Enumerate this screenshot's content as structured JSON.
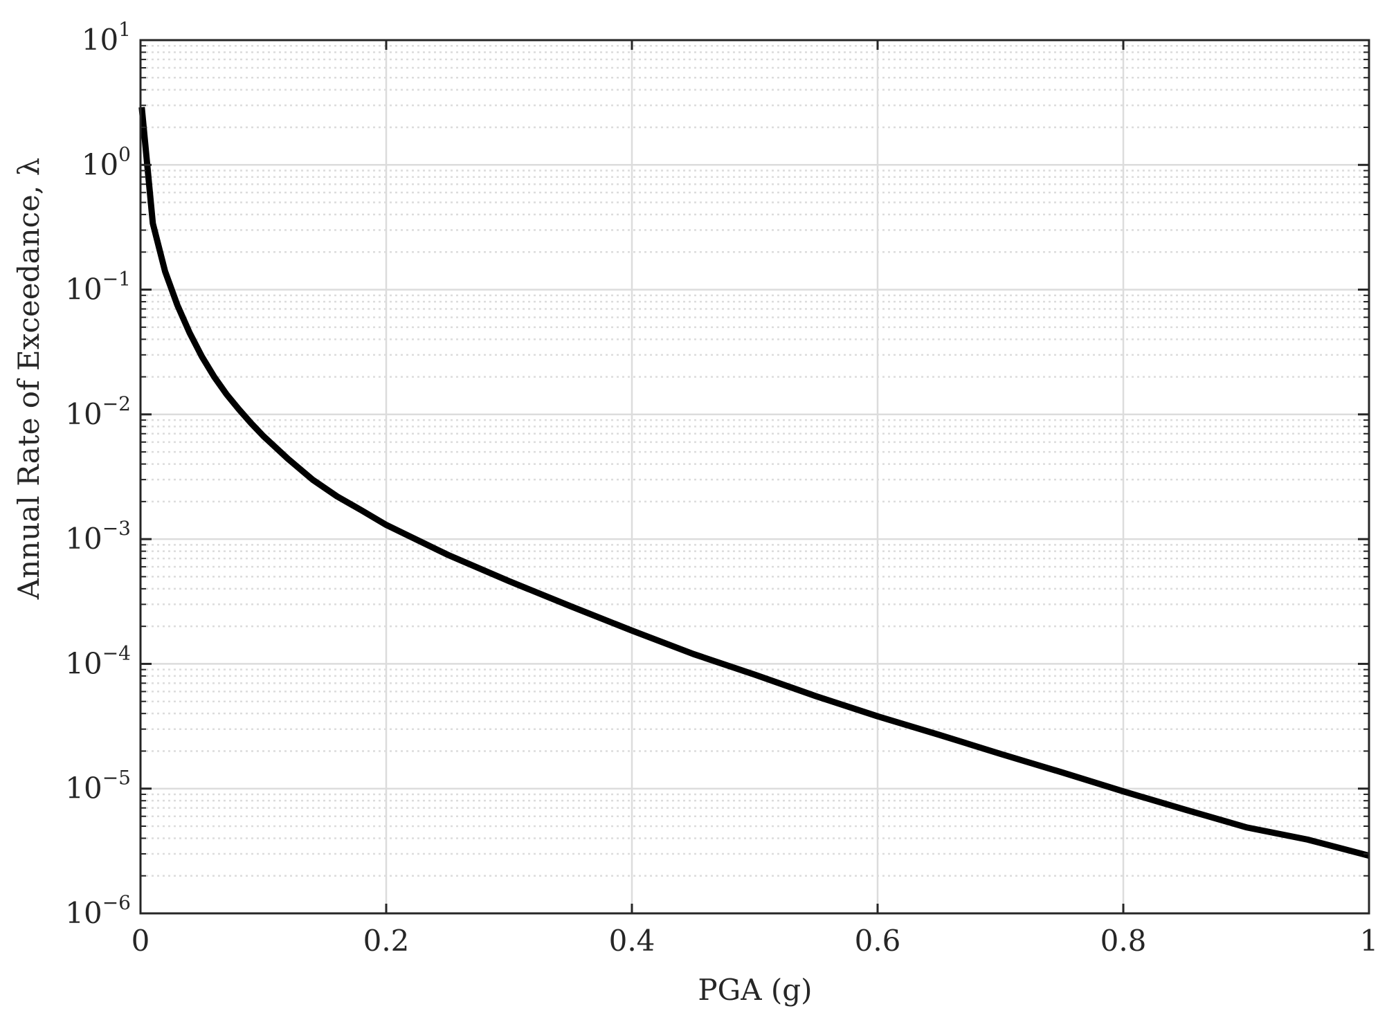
{
  "chart_data": {
    "type": "line",
    "title": "",
    "xlabel": "PGA (g)",
    "ylabel": "Annual Rate of Exceedance, λ",
    "xlim": [
      0,
      1
    ],
    "ylim": [
      1e-06,
      10
    ],
    "yscale": "log",
    "grid": true,
    "minor_grid": true,
    "line_color": "#000000",
    "grid_color": "#dcdcdc",
    "axis_color": "#262626",
    "xticks": [
      {
        "value": 0,
        "label": "0"
      },
      {
        "value": 0.2,
        "label": "0.2"
      },
      {
        "value": 0.4,
        "label": "0.4"
      },
      {
        "value": 0.6,
        "label": "0.6"
      },
      {
        "value": 0.8,
        "label": "0.8"
      },
      {
        "value": 1,
        "label": "1"
      }
    ],
    "yticks": [
      {
        "value": 1e-06,
        "base": "10",
        "exp": "−6"
      },
      {
        "value": 1e-05,
        "base": "10",
        "exp": "−5"
      },
      {
        "value": 0.0001,
        "base": "10",
        "exp": "−4"
      },
      {
        "value": 0.001,
        "base": "10",
        "exp": "−3"
      },
      {
        "value": 0.01,
        "base": "10",
        "exp": "−2"
      },
      {
        "value": 0.1,
        "base": "10",
        "exp": "−1"
      },
      {
        "value": 1,
        "base": "10",
        "exp": "0"
      },
      {
        "value": 10,
        "base": "10",
        "exp": "1"
      }
    ],
    "series": [
      {
        "x": [
          0.001,
          0.01,
          0.02,
          0.03,
          0.04,
          0.05,
          0.06,
          0.07,
          0.08,
          0.09,
          0.1,
          0.12,
          0.14,
          0.16,
          0.18,
          0.2,
          0.25,
          0.3,
          0.35,
          0.4,
          0.45,
          0.5,
          0.55,
          0.6,
          0.65,
          0.7,
          0.75,
          0.8,
          0.85,
          0.9,
          0.95,
          1.0
        ],
        "y": [
          2.9,
          0.34,
          0.14,
          0.075,
          0.045,
          0.029,
          0.02,
          0.0145,
          0.011,
          0.0085,
          0.0067,
          0.0044,
          0.003,
          0.0022,
          0.0017,
          0.0013,
          0.00075,
          0.00046,
          0.00029,
          0.000185,
          0.00012,
          8.2e-05,
          5.5e-05,
          3.8e-05,
          2.7e-05,
          1.9e-05,
          1.35e-05,
          9.5e-06,
          6.8e-06,
          4.9e-06,
          3.9e-06,
          2.9e-06
        ]
      }
    ]
  }
}
